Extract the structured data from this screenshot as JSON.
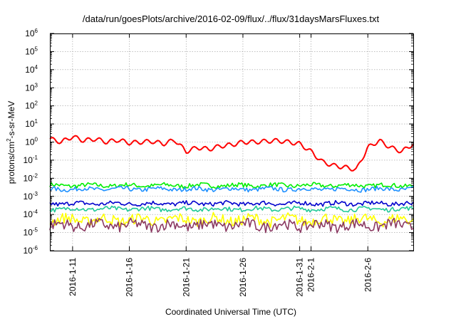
{
  "chart_data": {
    "type": "line",
    "title": "/data/run/goesPlots/archive/2016-02-09/flux/../flux/31daysMarsFluxes.txt",
    "xlabel": "Coordinated Universal Time (UTC)",
    "ylabel": "protons/cm²-s-sr-MeV",
    "ylabel_parts": {
      "pre": "protons/cm",
      "sup": "2",
      "post": "-s-sr-MeV"
    },
    "yscale": "log",
    "ylim_exponents": [
      -6,
      6
    ],
    "ytick_labels": [
      {
        "base": "10",
        "exp": "6"
      },
      {
        "base": "10",
        "exp": "5"
      },
      {
        "base": "10",
        "exp": "4"
      },
      {
        "base": "10",
        "exp": "3"
      },
      {
        "base": "10",
        "exp": "2"
      },
      {
        "base": "10",
        "exp": "1"
      },
      {
        "base": "10",
        "exp": "0"
      },
      {
        "base": "10",
        "exp": "-1"
      },
      {
        "base": "10",
        "exp": "-2"
      },
      {
        "base": "10",
        "exp": "-3"
      },
      {
        "base": "10",
        "exp": "-4"
      },
      {
        "base": "10",
        "exp": "-5"
      },
      {
        "base": "10",
        "exp": "-6"
      }
    ],
    "xlim": [
      "2016-01-09",
      "2016-02-10"
    ],
    "xtick_labels": [
      {
        "date": "2016-01-11",
        "label": "2016-1-11"
      },
      {
        "date": "2016-01-16",
        "label": "2016-1-16"
      },
      {
        "date": "2016-01-21",
        "label": "2016-1-21"
      },
      {
        "date": "2016-01-26",
        "label": "2016-1-26"
      },
      {
        "date": "2016-01-31",
        "label": "2016-1-31"
      },
      {
        "date": "2016-02-01",
        "label": "2016-2-1"
      },
      {
        "date": "2016-02-06",
        "label": "2016-2-6"
      }
    ],
    "grid": true,
    "series": [
      {
        "color": "#ff0000",
        "x": [
          "2016-01-09",
          "2016-01-10",
          "2016-01-11",
          "2016-01-12",
          "2016-01-13",
          "2016-01-14",
          "2016-01-15",
          "2016-01-16",
          "2016-01-17",
          "2016-01-18",
          "2016-01-19",
          "2016-01-20",
          "2016-01-21",
          "2016-01-22",
          "2016-01-23",
          "2016-01-24",
          "2016-01-25",
          "2016-01-26",
          "2016-01-27",
          "2016-01-28",
          "2016-01-29",
          "2016-01-30",
          "2016-01-31",
          "2016-02-01",
          "2016-02-02",
          "2016-02-03",
          "2016-02-04",
          "2016-02-05",
          "2016-02-06",
          "2016-02-07",
          "2016-02-08",
          "2016-02-09",
          "2016-02-10"
        ],
        "y": [
          1.5,
          1.0,
          2.0,
          1.2,
          1.5,
          1.0,
          1.3,
          0.9,
          1.0,
          1.1,
          0.8,
          1.3,
          0.3,
          0.5,
          0.4,
          0.6,
          0.7,
          1.0,
          1.0,
          1.1,
          1.2,
          1.0,
          0.8,
          0.3,
          0.08,
          0.05,
          0.04,
          0.03,
          0.5,
          1.2,
          0.5,
          0.3,
          0.8
        ]
      },
      {
        "color": "#00ee00",
        "y_level": 0.004
      },
      {
        "color": "#1e90ff",
        "y_level": 0.0025
      },
      {
        "color": "#0000cd",
        "y_level": 0.0004
      },
      {
        "color": "#20c997",
        "y_level": 0.0002
      },
      {
        "color": "#ffff00",
        "y_level": 5e-05
      },
      {
        "color": "#8b3a62",
        "y_level": 2.5e-05
      }
    ]
  }
}
